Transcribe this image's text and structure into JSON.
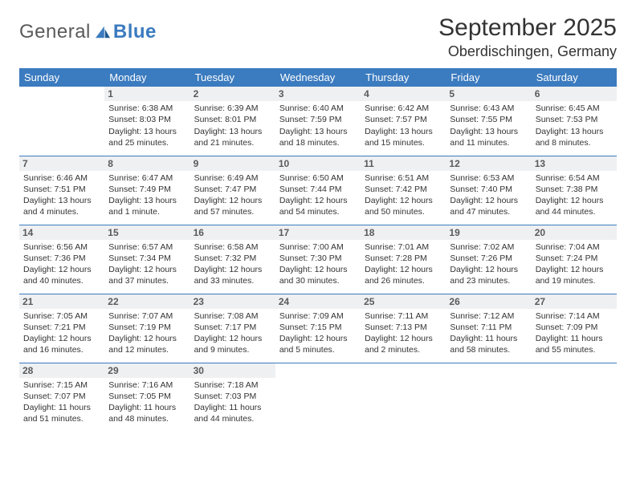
{
  "brand": {
    "part1": "General",
    "part2": "Blue",
    "accent_color": "#3b7bbf"
  },
  "header": {
    "title": "September 2025",
    "location": "Oberdischingen, Germany"
  },
  "colors": {
    "header_bg": "#3b7bbf",
    "header_text": "#ffffff",
    "daynum_bg": "#eef0f2",
    "rule": "#3b7bbf",
    "text": "#333333"
  },
  "typography": {
    "title_size_pt": 22,
    "location_size_pt": 14,
    "header_cell_size_pt": 10,
    "cell_size_pt": 8
  },
  "layout": {
    "aspect_w": 792,
    "aspect_h": 612,
    "columns": 7,
    "rows": 5
  },
  "weekdays": [
    "Sunday",
    "Monday",
    "Tuesday",
    "Wednesday",
    "Thursday",
    "Friday",
    "Saturday"
  ],
  "cells": [
    {
      "day": "",
      "sunrise": "",
      "sunset": "",
      "daylight": ""
    },
    {
      "day": "1",
      "sunrise": "Sunrise: 6:38 AM",
      "sunset": "Sunset: 8:03 PM",
      "daylight": "Daylight: 13 hours and 25 minutes."
    },
    {
      "day": "2",
      "sunrise": "Sunrise: 6:39 AM",
      "sunset": "Sunset: 8:01 PM",
      "daylight": "Daylight: 13 hours and 21 minutes."
    },
    {
      "day": "3",
      "sunrise": "Sunrise: 6:40 AM",
      "sunset": "Sunset: 7:59 PM",
      "daylight": "Daylight: 13 hours and 18 minutes."
    },
    {
      "day": "4",
      "sunrise": "Sunrise: 6:42 AM",
      "sunset": "Sunset: 7:57 PM",
      "daylight": "Daylight: 13 hours and 15 minutes."
    },
    {
      "day": "5",
      "sunrise": "Sunrise: 6:43 AM",
      "sunset": "Sunset: 7:55 PM",
      "daylight": "Daylight: 13 hours and 11 minutes."
    },
    {
      "day": "6",
      "sunrise": "Sunrise: 6:45 AM",
      "sunset": "Sunset: 7:53 PM",
      "daylight": "Daylight: 13 hours and 8 minutes."
    },
    {
      "day": "7",
      "sunrise": "Sunrise: 6:46 AM",
      "sunset": "Sunset: 7:51 PM",
      "daylight": "Daylight: 13 hours and 4 minutes."
    },
    {
      "day": "8",
      "sunrise": "Sunrise: 6:47 AM",
      "sunset": "Sunset: 7:49 PM",
      "daylight": "Daylight: 13 hours and 1 minute."
    },
    {
      "day": "9",
      "sunrise": "Sunrise: 6:49 AM",
      "sunset": "Sunset: 7:47 PM",
      "daylight": "Daylight: 12 hours and 57 minutes."
    },
    {
      "day": "10",
      "sunrise": "Sunrise: 6:50 AM",
      "sunset": "Sunset: 7:44 PM",
      "daylight": "Daylight: 12 hours and 54 minutes."
    },
    {
      "day": "11",
      "sunrise": "Sunrise: 6:51 AM",
      "sunset": "Sunset: 7:42 PM",
      "daylight": "Daylight: 12 hours and 50 minutes."
    },
    {
      "day": "12",
      "sunrise": "Sunrise: 6:53 AM",
      "sunset": "Sunset: 7:40 PM",
      "daylight": "Daylight: 12 hours and 47 minutes."
    },
    {
      "day": "13",
      "sunrise": "Sunrise: 6:54 AM",
      "sunset": "Sunset: 7:38 PM",
      "daylight": "Daylight: 12 hours and 44 minutes."
    },
    {
      "day": "14",
      "sunrise": "Sunrise: 6:56 AM",
      "sunset": "Sunset: 7:36 PM",
      "daylight": "Daylight: 12 hours and 40 minutes."
    },
    {
      "day": "15",
      "sunrise": "Sunrise: 6:57 AM",
      "sunset": "Sunset: 7:34 PM",
      "daylight": "Daylight: 12 hours and 37 minutes."
    },
    {
      "day": "16",
      "sunrise": "Sunrise: 6:58 AM",
      "sunset": "Sunset: 7:32 PM",
      "daylight": "Daylight: 12 hours and 33 minutes."
    },
    {
      "day": "17",
      "sunrise": "Sunrise: 7:00 AM",
      "sunset": "Sunset: 7:30 PM",
      "daylight": "Daylight: 12 hours and 30 minutes."
    },
    {
      "day": "18",
      "sunrise": "Sunrise: 7:01 AM",
      "sunset": "Sunset: 7:28 PM",
      "daylight": "Daylight: 12 hours and 26 minutes."
    },
    {
      "day": "19",
      "sunrise": "Sunrise: 7:02 AM",
      "sunset": "Sunset: 7:26 PM",
      "daylight": "Daylight: 12 hours and 23 minutes."
    },
    {
      "day": "20",
      "sunrise": "Sunrise: 7:04 AM",
      "sunset": "Sunset: 7:24 PM",
      "daylight": "Daylight: 12 hours and 19 minutes."
    },
    {
      "day": "21",
      "sunrise": "Sunrise: 7:05 AM",
      "sunset": "Sunset: 7:21 PM",
      "daylight": "Daylight: 12 hours and 16 minutes."
    },
    {
      "day": "22",
      "sunrise": "Sunrise: 7:07 AM",
      "sunset": "Sunset: 7:19 PM",
      "daylight": "Daylight: 12 hours and 12 minutes."
    },
    {
      "day": "23",
      "sunrise": "Sunrise: 7:08 AM",
      "sunset": "Sunset: 7:17 PM",
      "daylight": "Daylight: 12 hours and 9 minutes."
    },
    {
      "day": "24",
      "sunrise": "Sunrise: 7:09 AM",
      "sunset": "Sunset: 7:15 PM",
      "daylight": "Daylight: 12 hours and 5 minutes."
    },
    {
      "day": "25",
      "sunrise": "Sunrise: 7:11 AM",
      "sunset": "Sunset: 7:13 PM",
      "daylight": "Daylight: 12 hours and 2 minutes."
    },
    {
      "day": "26",
      "sunrise": "Sunrise: 7:12 AM",
      "sunset": "Sunset: 7:11 PM",
      "daylight": "Daylight: 11 hours and 58 minutes."
    },
    {
      "day": "27",
      "sunrise": "Sunrise: 7:14 AM",
      "sunset": "Sunset: 7:09 PM",
      "daylight": "Daylight: 11 hours and 55 minutes."
    },
    {
      "day": "28",
      "sunrise": "Sunrise: 7:15 AM",
      "sunset": "Sunset: 7:07 PM",
      "daylight": "Daylight: 11 hours and 51 minutes."
    },
    {
      "day": "29",
      "sunrise": "Sunrise: 7:16 AM",
      "sunset": "Sunset: 7:05 PM",
      "daylight": "Daylight: 11 hours and 48 minutes."
    },
    {
      "day": "30",
      "sunrise": "Sunrise: 7:18 AM",
      "sunset": "Sunset: 7:03 PM",
      "daylight": "Daylight: 11 hours and 44 minutes."
    },
    {
      "day": "",
      "sunrise": "",
      "sunset": "",
      "daylight": ""
    },
    {
      "day": "",
      "sunrise": "",
      "sunset": "",
      "daylight": ""
    },
    {
      "day": "",
      "sunrise": "",
      "sunset": "",
      "daylight": ""
    },
    {
      "day": "",
      "sunrise": "",
      "sunset": "",
      "daylight": ""
    }
  ]
}
